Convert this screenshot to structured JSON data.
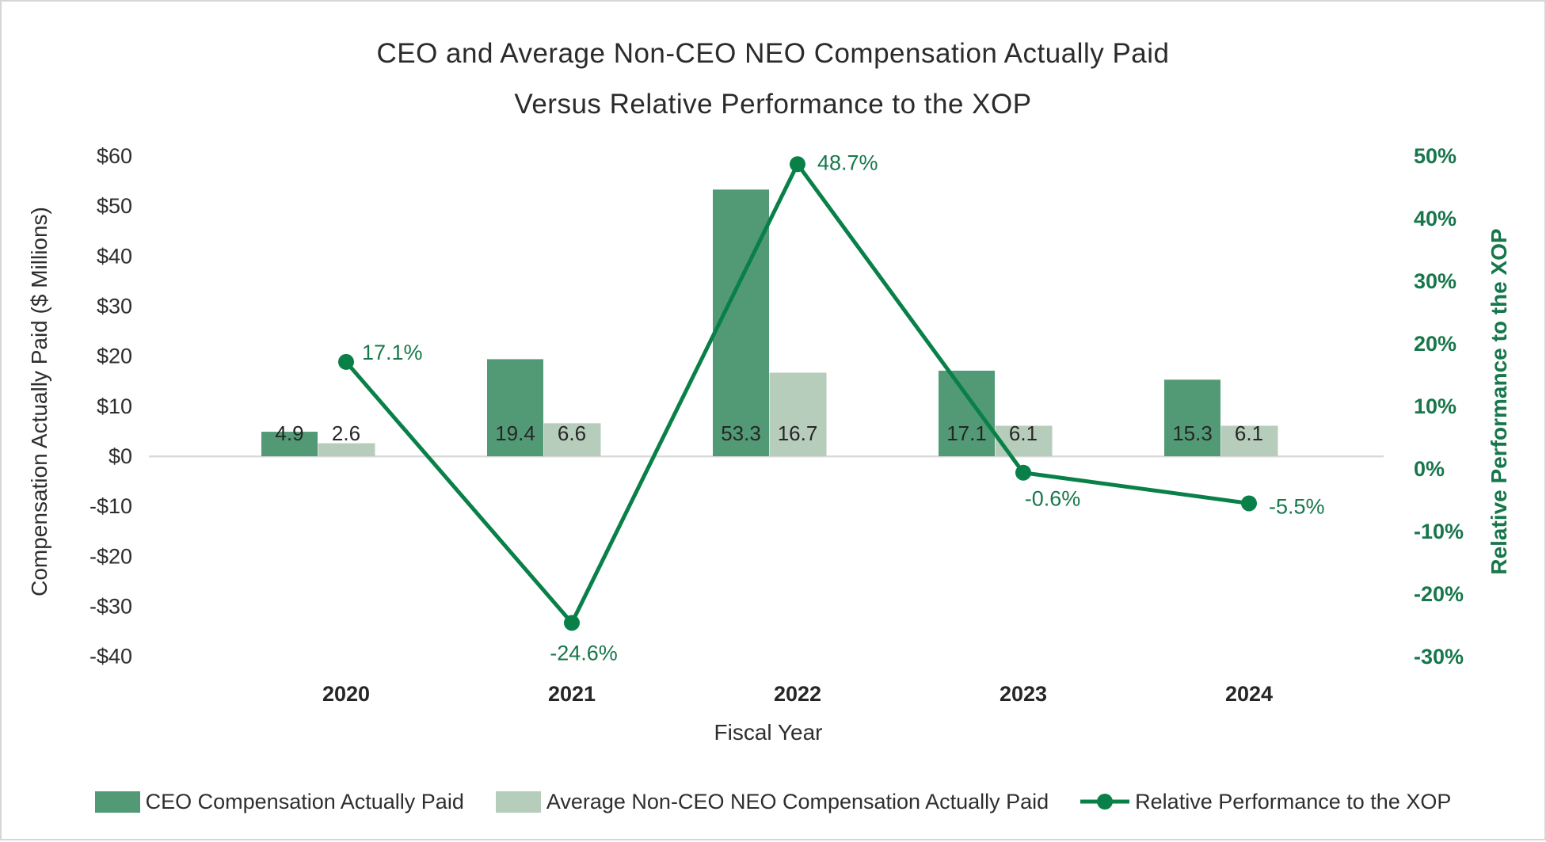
{
  "title": {
    "line1": "CEO and Average Non-CEO NEO Compensation Actually Paid",
    "line2": "Versus Relative Performance to the XOP"
  },
  "chart_data": {
    "type": "combo-bar-line",
    "categories": [
      "2020",
      "2021",
      "2022",
      "2023",
      "2024"
    ],
    "series": [
      {
        "name": "CEO Compensation Actually Paid",
        "type": "bar",
        "axis": "left",
        "color": "#529a76",
        "values": [
          4.9,
          19.4,
          53.3,
          17.1,
          15.3
        ],
        "value_labels": [
          "4.9",
          "19.4",
          "53.3",
          "17.1",
          "15.3"
        ]
      },
      {
        "name": "Average Non-CEO NEO Compensation Actually Paid",
        "type": "bar",
        "axis": "left",
        "color": "#b7cdbc",
        "values": [
          2.6,
          6.6,
          16.7,
          6.1,
          6.1
        ],
        "value_labels": [
          "2.6",
          "6.6",
          "16.7",
          "6.1",
          "6.1"
        ]
      },
      {
        "name": "Relative Performance to the XOP",
        "type": "line",
        "axis": "right",
        "color": "#0a8049",
        "values": [
          17.1,
          -24.6,
          48.7,
          -0.6,
          -5.5
        ],
        "value_labels": [
          "17.1%",
          "-24.6%",
          "48.7%",
          "-0.6%",
          "-5.5%"
        ]
      }
    ],
    "x_axis": {
      "title": "Fiscal Year"
    },
    "left_axis": {
      "title": "Compensation Actually Paid ($ Millions)",
      "tick_labels": [
        "$60",
        "$50",
        "$40",
        "$30",
        "$20",
        "$10",
        "$0",
        "-$10",
        "-$20",
        "-$30",
        "-$40"
      ],
      "tick_values": [
        60,
        50,
        40,
        30,
        20,
        10,
        0,
        -10,
        -20,
        -30,
        -40
      ],
      "range": [
        -40,
        60
      ]
    },
    "right_axis": {
      "title": "Relative Performance to the XOP",
      "tick_labels": [
        "50%",
        "40%",
        "30%",
        "20%",
        "10%",
        "0%",
        "-10%",
        "-20%",
        "-30%"
      ],
      "tick_values": [
        50,
        40,
        30,
        20,
        10,
        0,
        -10,
        -20,
        -30
      ],
      "range": [
        -30,
        50
      ]
    },
    "legend": [
      {
        "label": "CEO Compensation Actually Paid",
        "marker": "bar",
        "color": "#529a76"
      },
      {
        "label": "Average Non-CEO NEO Compensation Actually Paid",
        "marker": "bar",
        "color": "#b7cdbc"
      },
      {
        "label": "Relative Performance to the XOP",
        "marker": "line",
        "color": "#0a8049"
      }
    ],
    "colors": {
      "text_dark": "#2e2e2e",
      "value_label": "#262626",
      "text_green": "#17774b",
      "gridline": "#d9d9d9"
    },
    "grid": "zero-line-only",
    "legend_position": "bottom"
  }
}
